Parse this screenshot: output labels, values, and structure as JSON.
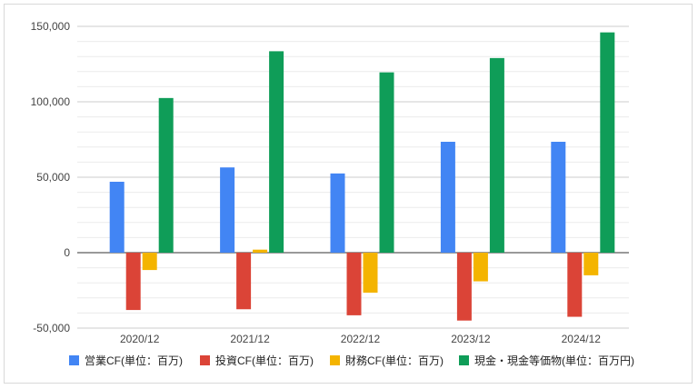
{
  "chart_data": {
    "type": "bar",
    "categories": [
      "2020/12",
      "2021/12",
      "2022/12",
      "2023/12",
      "2024/12"
    ],
    "series": [
      {
        "name": "営業CF(単位：百万)",
        "color": "#4285f4",
        "values": [
          47000,
          56500,
          52500,
          73500,
          73500
        ]
      },
      {
        "name": "投資CF(単位：百万)",
        "color": "#db4437",
        "values": [
          -38000,
          -37500,
          -41500,
          -45000,
          -42500
        ]
      },
      {
        "name": "財務CF(単位：百万)",
        "color": "#f4b400",
        "values": [
          -11500,
          2000,
          -26500,
          -19000,
          -15000
        ]
      },
      {
        "name": "現金・現金等価物(単位：百万円)",
        "color": "#0f9d58",
        "values": [
          102500,
          133500,
          119500,
          129000,
          146000
        ]
      }
    ],
    "ylim": [
      -50000,
      150000
    ],
    "yticks": [
      -50000,
      0,
      50000,
      100000,
      150000
    ],
    "ytick_labels": [
      "-50,000",
      "0",
      "50,000",
      "100,000",
      "150,000"
    ],
    "grid": true,
    "legend": "bottom"
  }
}
